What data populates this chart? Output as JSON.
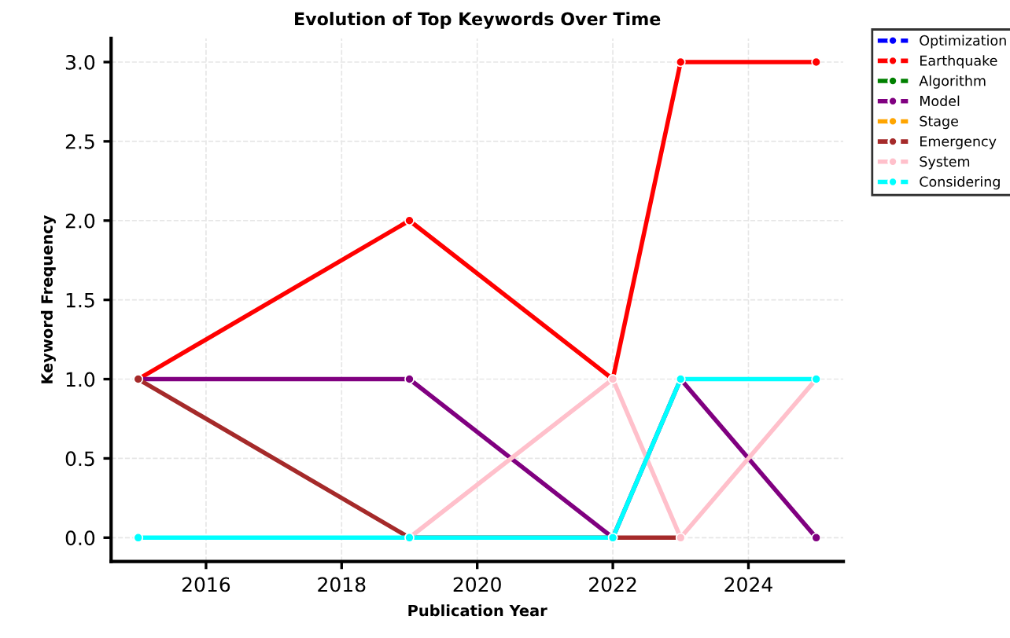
{
  "chart_data": {
    "type": "line",
    "title": "Evolution of Top Keywords Over Time",
    "xlabel": "Publication Year",
    "ylabel": "Keyword Frequency",
    "x": [
      2015,
      2019,
      2022,
      2023,
      2025
    ],
    "series": [
      {
        "name": "Optimization",
        "color": "#0000ff",
        "values": [
          null,
          null,
          null,
          null,
          null
        ]
      },
      {
        "name": "Earthquake",
        "color": "#ff0000",
        "values": [
          1,
          2,
          1,
          3,
          3
        ]
      },
      {
        "name": "Algorithm",
        "color": "#008000",
        "values": [
          null,
          null,
          null,
          null,
          null
        ]
      },
      {
        "name": "Model",
        "color": "#800080",
        "values": [
          1,
          1,
          0,
          1,
          0
        ]
      },
      {
        "name": "Stage",
        "color": "#ffa500",
        "values": [
          null,
          null,
          null,
          null,
          null
        ]
      },
      {
        "name": "Emergency",
        "color": "#a52a2a",
        "values": [
          1,
          0,
          0,
          0,
          null
        ]
      },
      {
        "name": "System",
        "color": "#ffc0cb",
        "values": [
          null,
          0,
          1,
          0,
          1
        ]
      },
      {
        "name": "Considering",
        "color": "#00ffff",
        "values": [
          0,
          0,
          0,
          1,
          1
        ]
      }
    ],
    "xlim": [
      2014.6,
      2025.4
    ],
    "ylim": [
      -0.15,
      3.15
    ],
    "xticks": [
      2016,
      2018,
      2020,
      2022,
      2024
    ],
    "yticks": [
      {
        "value": 0,
        "label": "0.0"
      },
      {
        "value": 0.5,
        "label": "0.5"
      },
      {
        "value": 1,
        "label": "1.0"
      },
      {
        "value": 1.5,
        "label": "1.5"
      },
      {
        "value": 2,
        "label": "2.0"
      },
      {
        "value": 2.5,
        "label": "2.5"
      },
      {
        "value": 3,
        "label": "3.0"
      }
    ],
    "grid": true,
    "legend": "top right",
    "marker": "circle",
    "line_style": "solid"
  }
}
